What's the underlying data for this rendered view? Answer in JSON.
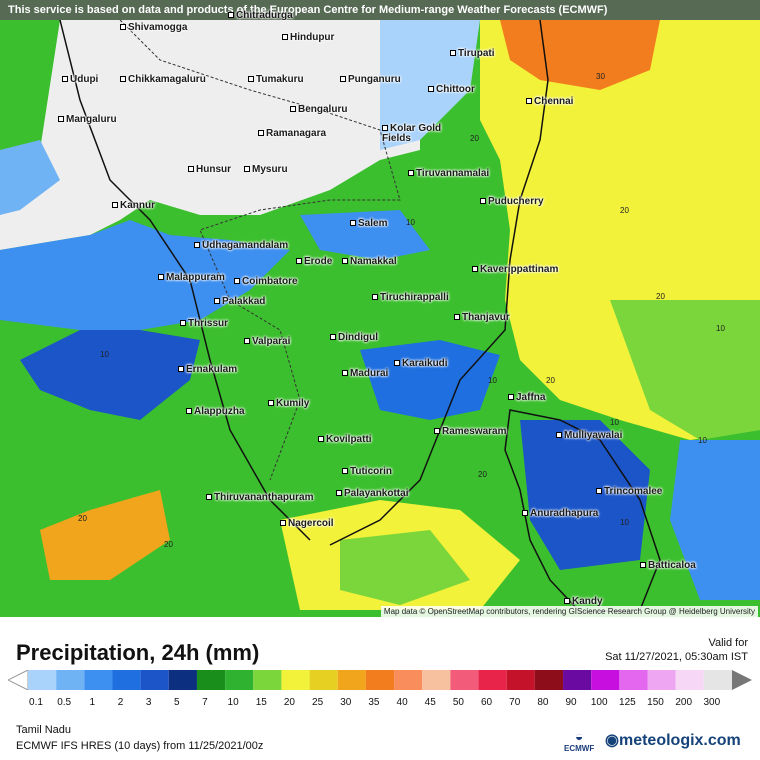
{
  "banner_text": "This service is based on data and products of the European Centre for Medium-range Weather Forecasts (ECMWF)",
  "attribution": "Map data © OpenStreetMap contributors, rendering GIScience Research Group @ Heidelberg University",
  "title": "Precipitation, 24h (mm)",
  "valid_label": "Valid for",
  "valid_time": "Sat 11/27/2021, 05:30am IST",
  "region": "Tamil Nadu",
  "model": "ECMWF IFS HRES (10 days) from 11/25/2021/00z",
  "ecmwf_logo_text": "ECMWF",
  "brand": "meteologix.com",
  "scale": {
    "ticks": [
      "0.1",
      "0.5",
      "1",
      "2",
      "3",
      "5",
      "7",
      "10",
      "15",
      "20",
      "25",
      "30",
      "35",
      "40",
      "45",
      "50",
      "60",
      "70",
      "80",
      "90",
      "100",
      "125",
      "150",
      "200",
      "300"
    ],
    "colors": [
      "#a9d3fb",
      "#6fb3f5",
      "#3d8ff0",
      "#1f6fe0",
      "#1b55c8",
      "#0c2f7f",
      "#1a8e1a",
      "#2fb22f",
      "#7bd63c",
      "#f2f23a",
      "#e6d021",
      "#f0a51c",
      "#f27d1e",
      "#f98d5c",
      "#f7c1a0",
      "#f25b7a",
      "#e8244a",
      "#c4122a",
      "#8e0d1a",
      "#6a0aa0",
      "#c70fe0",
      "#e467f0",
      "#eea5f2",
      "#f6d8f6",
      "#e5e5e5"
    ]
  },
  "cities": [
    "Shivamogga",
    "Chitradurga",
    "Hindupur",
    "Tirupati",
    "Udupi",
    "Chikkamagaluru",
    "Tumakuru",
    "Punganuru",
    "Chittoor",
    "Chennai",
    "Mangaluru",
    "Bengaluru",
    "Ramanagara",
    "Kolar Gold Fields",
    "Hunsur",
    "Mysuru",
    "Tiruvannamalai",
    "Kannur",
    "Salem",
    "Puducherry",
    "Udhagamandalam",
    "Erode",
    "Namakkal",
    "Kaverippattinam",
    "Malappuram",
    "Coimbatore",
    "Palakkad",
    "Tiruchirappalli",
    "Thrissur",
    "Thanjavur",
    "Valparai",
    "Dindigul",
    "Ernakulam",
    "Madurai",
    "Karaikudi",
    "Jaffna",
    "Alappuzha",
    "Kumily",
    "Rameswaram",
    "Mulliyawalai",
    "Kovilpatti",
    "Tuticorin",
    "Trincomalee",
    "Thiruvananthapuram",
    "Palayankottai",
    "Anuradhapura",
    "Nagercoil",
    "Batticaloa",
    "Kandy"
  ],
  "contour_labels": [
    "30",
    "20",
    "10",
    "10",
    "10",
    "20",
    "10",
    "10",
    "20",
    "10",
    "20",
    "10",
    "20",
    "20",
    "20"
  ]
}
